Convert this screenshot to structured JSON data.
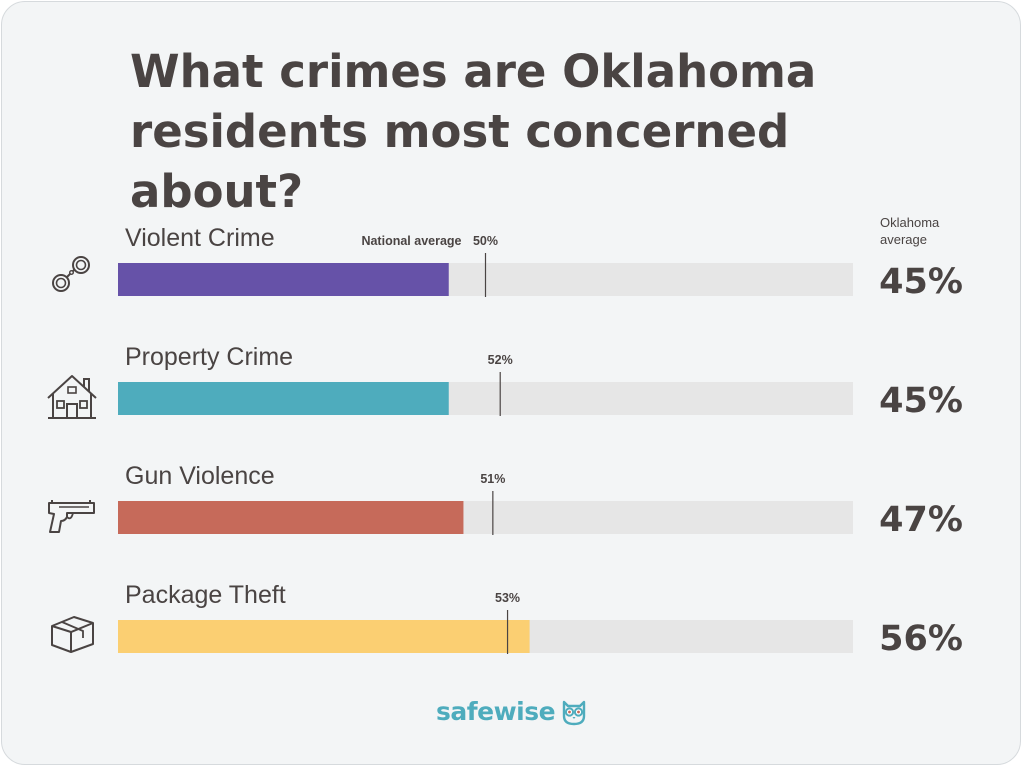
{
  "title_line1": "What crimes are Oklahoma",
  "title_line2": "residents most concerned about?",
  "avg_header_line1": "Oklahoma",
  "avg_header_line2": "average",
  "national_average_label": "National average",
  "logo_text": "safewise",
  "colors": {
    "text": "#4a4443",
    "track": "#e6e6e6",
    "marker": "#4a4443",
    "brand": "#4eacbd"
  },
  "chart_data": {
    "type": "bar",
    "orientation": "horizontal",
    "xlim": [
      0,
      100
    ],
    "unit": "%",
    "categories": [
      "Violent Crime",
      "Property Crime",
      "Gun Violence",
      "Package Theft"
    ],
    "series": [
      {
        "name": "Oklahoma average",
        "values": [
          45,
          45,
          47,
          56
        ]
      },
      {
        "name": "National average",
        "values": [
          50,
          52,
          51,
          53
        ]
      }
    ],
    "value_labels": [
      "45%",
      "45%",
      "47%",
      "56%"
    ],
    "national_labels": [
      "50%",
      "52%",
      "51%",
      "53%"
    ],
    "bar_colors": [
      "#6652a8",
      "#4eacbd",
      "#c66a5a",
      "#fbcf72"
    ],
    "icons": [
      "handcuffs-icon",
      "house-icon",
      "handgun-icon",
      "package-icon"
    ]
  }
}
